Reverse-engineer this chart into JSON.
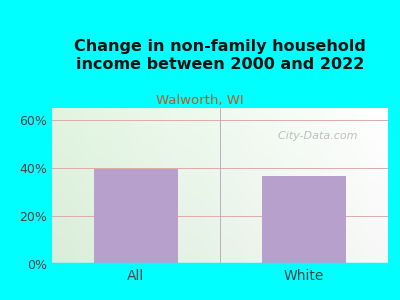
{
  "title": "Change in non-family household\nincome between 2000 and 2022",
  "subtitle": "Walworth, WI",
  "categories": [
    "All",
    "White"
  ],
  "values": [
    39.5,
    36.5
  ],
  "bar_color": "#b8a0cc",
  "title_fontsize": 11.5,
  "subtitle_fontsize": 9.5,
  "subtitle_color": "#c05820",
  "title_color": "#111111",
  "tick_color": "#444444",
  "ylim": [
    0,
    65
  ],
  "yticks": [
    0,
    20,
    40,
    60
  ],
  "yticklabels": [
    "0%",
    "20%",
    "40%",
    "60%"
  ],
  "background_outer": "#00ffff",
  "grid_color": "#ddaaaa",
  "bar_width": 0.5,
  "watermark": "  City-Data.com",
  "watermark_color": "#aaaaaa"
}
